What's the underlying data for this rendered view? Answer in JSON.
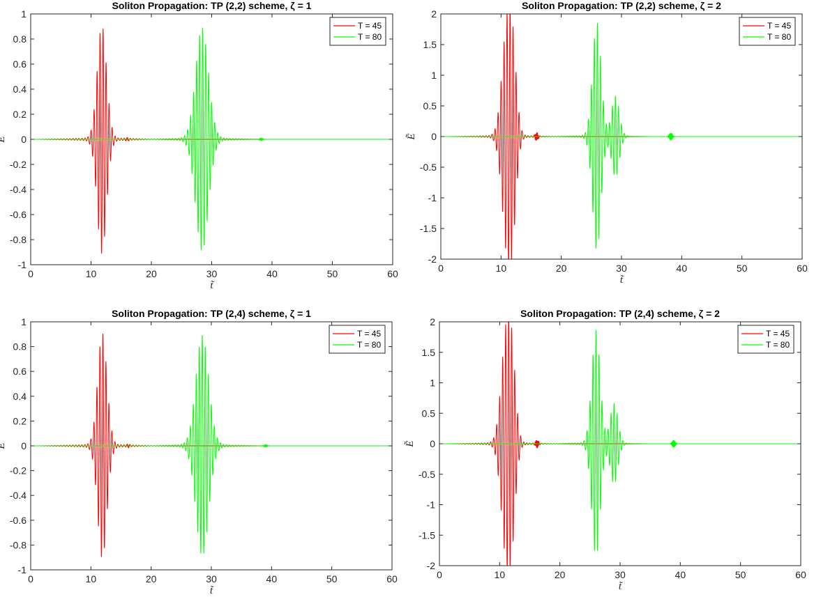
{
  "chart_data": [
    {
      "type": "line",
      "title": "Soliton Propagation: TP (2,2) scheme, ζ = 1",
      "xlabel": "t̃",
      "ylabel": "Ẽ",
      "xlim": [
        0,
        60
      ],
      "ylim": [
        -1,
        1
      ],
      "xticks": [
        "0",
        "10",
        "20",
        "30",
        "40",
        "50",
        "60"
      ],
      "yticks": [
        "1",
        "0.8",
        "0.6",
        "0.4",
        "0.2",
        "0",
        "-0.2",
        "-0.4",
        "-0.6",
        "-0.8",
        "-1"
      ],
      "grid": false,
      "legend_position": "top-right",
      "series": [
        {
          "name": "T = 45",
          "color": "#ff0000",
          "center": 11.8,
          "amplitude": 0.9,
          "width": 1.1,
          "carrier": 0.5,
          "tail_extent": 11,
          "tail_amplitude": 0.012,
          "blip_center": 16.0,
          "blip_amplitude": 0.01
        },
        {
          "name": "T = 80",
          "color": "#00ff00",
          "center": 28.4,
          "amplitude": 0.88,
          "width": 1.5,
          "carrier": 0.5,
          "tail_extent": 11,
          "tail_amplitude": 0.012,
          "blip_center": 38.2,
          "blip_amplitude": 0.01
        }
      ]
    },
    {
      "type": "line",
      "title": "Soliton Propagation: TP (2,2) scheme, ζ = 2",
      "xlabel": "t̃",
      "ylabel": "Ẽ",
      "xlim": [
        0,
        60
      ],
      "ylim": [
        -2,
        2
      ],
      "xticks": [
        "0",
        "10",
        "20",
        "30",
        "40",
        "50",
        "60"
      ],
      "yticks": [
        "2",
        "1.5",
        "1",
        "0.5",
        "0",
        "-0.5",
        "-1",
        "-1.5",
        "-2"
      ],
      "grid": false,
      "legend_position": "top-right",
      "series": [
        {
          "name": "T = 45",
          "color": "#ff0000",
          "center": 11.0,
          "amplitude": 1.75,
          "width": 1.2,
          "carrier": 0.5,
          "tail_extent": 10,
          "tail_amplitude": 0.02,
          "blip_center": 15.9,
          "blip_amplitude": 0.06,
          "second_center": 12.0,
          "second_amplitude": 0.9
        },
        {
          "name": "T = 80",
          "color": "#00ff00",
          "center": 25.9,
          "amplitude": 1.85,
          "width": 1.0,
          "carrier": 0.5,
          "tail_extent": 9,
          "tail_amplitude": 0.02,
          "blip_center": 38.2,
          "blip_amplitude": 0.06,
          "second_center": 29.0,
          "second_amplitude": 0.65
        }
      ]
    },
    {
      "type": "line",
      "title": "Soliton Propagation: TP (2,4) scheme, ζ = 1",
      "xlabel": "t̃",
      "ylabel": "Ẽ",
      "xlim": [
        0,
        60
      ],
      "ylim": [
        -1,
        1
      ],
      "xticks": [
        "0",
        "10",
        "20",
        "30",
        "40",
        "50",
        "60"
      ],
      "yticks": [
        "1",
        "0.8",
        "0.6",
        "0.4",
        "0.2",
        "0",
        "-0.2",
        "-0.4",
        "-0.6",
        "-0.8",
        "-1"
      ],
      "grid": false,
      "legend_position": "top-right",
      "series": [
        {
          "name": "T = 45",
          "color": "#ff0000",
          "center": 11.9,
          "amplitude": 0.9,
          "width": 1.1,
          "carrier": 0.5,
          "tail_extent": 11,
          "tail_amplitude": 0.012,
          "blip_center": 16.2,
          "blip_amplitude": 0.01
        },
        {
          "name": "T = 80",
          "color": "#00ff00",
          "center": 28.5,
          "amplitude": 0.88,
          "width": 1.5,
          "carrier": 0.5,
          "tail_extent": 11,
          "tail_amplitude": 0.012,
          "blip_center": 39.0,
          "blip_amplitude": 0.01
        }
      ]
    },
    {
      "type": "line",
      "title": "Soliton Propagation: TP (2,4) scheme, ζ = 2",
      "xlabel": "t̃",
      "ylabel": "Ẽ",
      "xlim": [
        0,
        60
      ],
      "ylim": [
        -2,
        2
      ],
      "xticks": [
        "0",
        "10",
        "20",
        "30",
        "40",
        "50",
        "60"
      ],
      "yticks": [
        "2",
        "1.5",
        "1",
        "0.5",
        "0",
        "-0.5",
        "-1",
        "-1.5",
        "-2"
      ],
      "grid": false,
      "legend_position": "top-right",
      "series": [
        {
          "name": "T = 45",
          "color": "#ff0000",
          "center": 11.1,
          "amplitude": 1.75,
          "width": 1.2,
          "carrier": 0.5,
          "tail_extent": 10,
          "tail_amplitude": 0.02,
          "blip_center": 16.2,
          "blip_amplitude": 0.06,
          "second_center": 12.1,
          "second_amplitude": 0.9
        },
        {
          "name": "T = 80",
          "color": "#00ff00",
          "center": 26.0,
          "amplitude": 1.85,
          "width": 1.0,
          "carrier": 0.5,
          "tail_extent": 9,
          "tail_amplitude": 0.02,
          "blip_center": 38.9,
          "blip_amplitude": 0.06,
          "second_center": 29.0,
          "second_amplitude": 0.65
        }
      ]
    }
  ]
}
